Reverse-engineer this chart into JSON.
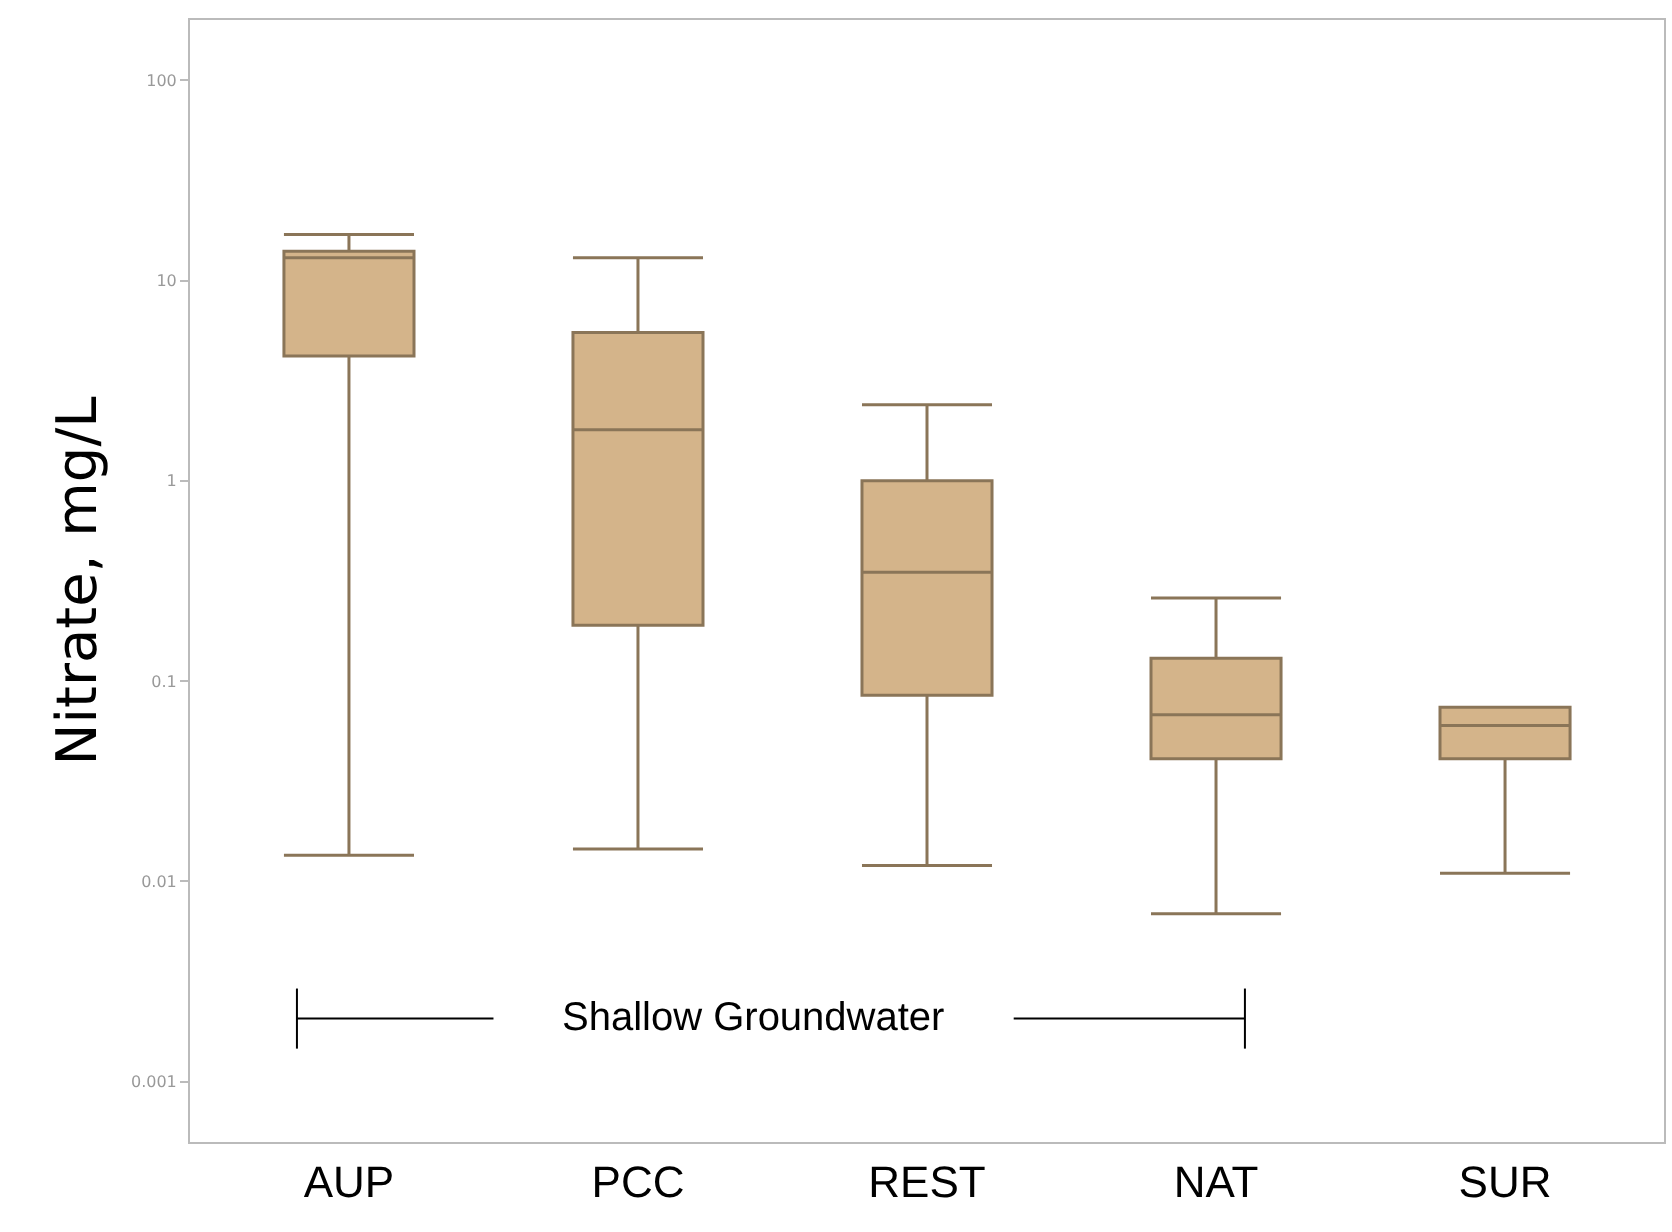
{
  "chart_data": {
    "type": "box",
    "ylabel": "Nitrate, mg/L",
    "log": true,
    "categories": [
      "AUP",
      "PCC",
      "REST",
      "NAT",
      "SUR"
    ],
    "boxes": [
      {
        "low": 0.0135,
        "q1": 4.2,
        "median": 13,
        "q3": 14,
        "high": 17
      },
      {
        "low": 0.0145,
        "q1": 0.19,
        "median": 1.8,
        "q3": 5.5,
        "high": 13
      },
      {
        "low": 0.012,
        "q1": 0.085,
        "median": 0.35,
        "q3": 1.0,
        "high": 2.4
      },
      {
        "low": 0.0069,
        "q1": 0.041,
        "median": 0.068,
        "q3": 0.13,
        "high": 0.26
      },
      {
        "low": 0.011,
        "q1": 0.041,
        "median": 0.06,
        "q3": 0.074,
        "high": 0.074
      }
    ],
    "color": "#d4b48a",
    "ylim": [
      0.0005,
      200
    ],
    "yticks": [
      0.001,
      0.01,
      0.1,
      1,
      10,
      100
    ],
    "annotations": [
      "Shallow Groundwater"
    ]
  }
}
